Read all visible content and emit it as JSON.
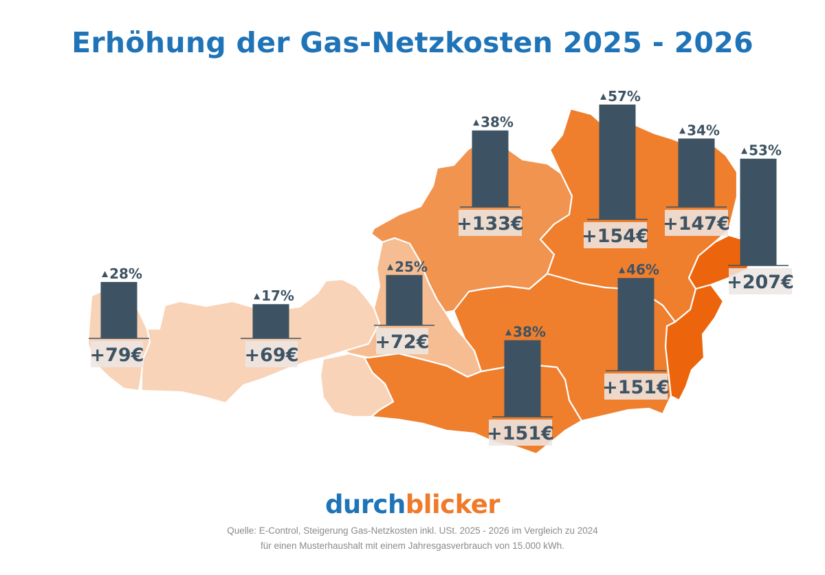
{
  "title": "Erhöhung der Gas-Netzkosten 2025 - 2026",
  "logo": {
    "part1": "durch",
    "part2": "blicker"
  },
  "source_line1": "Quelle: E-Control, Steigerung Gas-Netzkosten inkl. USt. 2025 - 2026 im Vergleich zu 2024",
  "source_line2": "für einen Musterhaushalt mit einem Jahresgasverbrauch von 15.000 kWh.",
  "colors": {
    "title": "#1f73b7",
    "bar": "#3d5363",
    "shade_lightest": "#f9d3b7",
    "shade_light": "#f6bd92",
    "shade_medium": "#f09450",
    "shade_dark": "#ef7e2d",
    "shade_darkest": "#ec650d"
  },
  "chart_data": {
    "type": "bar",
    "series": [
      {
        "name": "Steigerung (%)",
        "values": [
          28,
          17,
          25,
          38,
          57,
          34,
          53,
          46,
          38
        ]
      },
      {
        "name": "Mehrkosten (€)",
        "values": [
          79,
          69,
          72,
          133,
          154,
          147,
          207,
          151,
          151
        ]
      }
    ],
    "pct_labels": [
      "28%",
      "17%",
      "25%",
      "38%",
      "57%",
      "34%",
      "53%",
      "46%",
      "38%"
    ],
    "amount_labels": [
      "+79€",
      "+69€",
      "+72€",
      "+133€",
      "+154€",
      "+147€",
      "+207€",
      "+151€",
      "+151€"
    ]
  }
}
